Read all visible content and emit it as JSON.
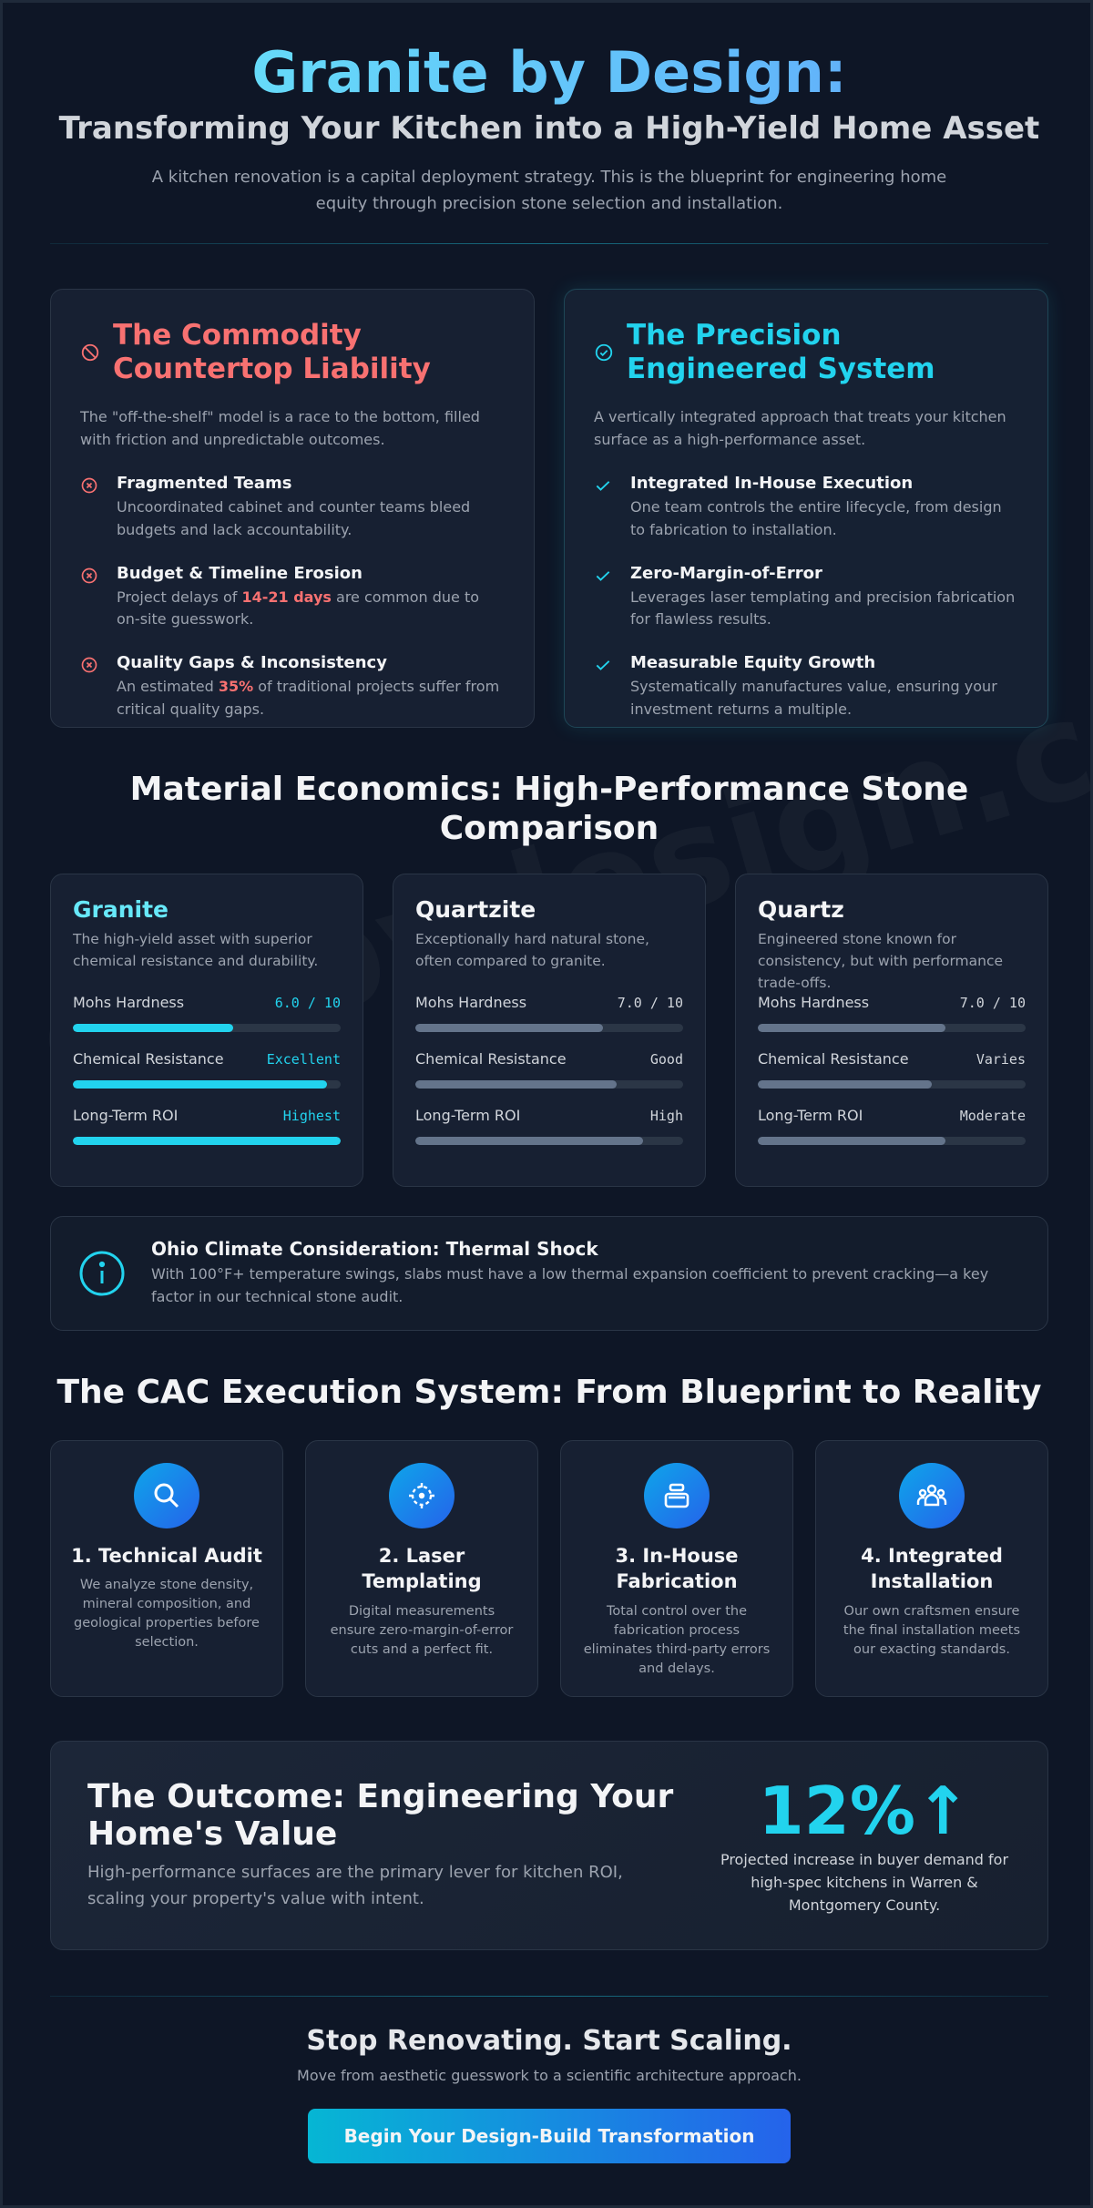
{
  "hero": {
    "title": "Granite by Design:",
    "subtitle": "Transforming Your Kitchen into a High-Yield Home Asset",
    "intro": "A kitchen renovation is a capital deployment strategy. This is the blueprint for engineering home equity through precision stone selection and installation."
  },
  "watermark": "cacbydesign.com",
  "commodity": {
    "title": "The Commodity Countertop Liability",
    "icon": "ban-icon",
    "description": "The \"off-the-shelf\" model is a race to the bottom, filled with friction and unpredictable outcomes.",
    "color": "#f87171",
    "items": [
      {
        "title": "Fragmented Teams",
        "text": "Uncoordinated cabinet and counter teams bleed budgets and lack accountability."
      },
      {
        "title": "Budget & Timeline Erosion",
        "text_before": "Project delays of ",
        "highlight": "14-21 days",
        "text_after": " are common due to on-site guesswork."
      },
      {
        "title": "Quality Gaps & Inconsistency",
        "text_before": "An estimated ",
        "highlight": "35%",
        "text_after": " of traditional projects suffer from critical quality gaps."
      }
    ]
  },
  "precision": {
    "title": "The Precision Engineered System",
    "icon": "check-circle-icon",
    "description": "A vertically integrated approach that treats your kitchen surface as a high-performance asset.",
    "color": "#22d3ee",
    "items": [
      {
        "title": "Integrated In-House Execution",
        "text": "One team controls the entire lifecycle, from design to fabrication to installation."
      },
      {
        "title": "Zero-Margin-of-Error",
        "text": "Leverages laser templating and precision fabrication for flawless results."
      },
      {
        "title": "Measurable Equity Growth",
        "text": "Systematically manufactures value, ensuring your investment returns a multiple."
      }
    ]
  },
  "materials": {
    "title": "Material Economics: High-Performance Stone Comparison",
    "stones": [
      {
        "name": "Granite",
        "description": "The high-yield asset with superior chemical resistance and durability.",
        "metrics": [
          {
            "label": "Mohs Hardness",
            "value": "6.0 / 10",
            "level": 0.6
          },
          {
            "label": "Chemical Resistance",
            "value": "Excellent",
            "level": 0.95
          },
          {
            "label": "Long-Term ROI",
            "value": "Highest",
            "level": 1.0
          }
        ]
      },
      {
        "name": "Quartzite",
        "description": "Exceptionally hard natural stone, often compared to granite.",
        "metrics": [
          {
            "label": "Mohs Hardness",
            "value": "7.0 / 10",
            "level": 0.7
          },
          {
            "label": "Chemical Resistance",
            "value": "Good",
            "level": 0.75
          },
          {
            "label": "Long-Term ROI",
            "value": "High",
            "level": 0.85
          }
        ]
      },
      {
        "name": "Quartz",
        "description": "Engineered stone known for consistency, but with performance trade-offs.",
        "metrics": [
          {
            "label": "Mohs Hardness",
            "value": "7.0 / 10",
            "level": 0.7
          },
          {
            "label": "Chemical Resistance",
            "value": "Varies",
            "level": 0.65
          },
          {
            "label": "Long-Term ROI",
            "value": "Moderate",
            "level": 0.7
          }
        ]
      }
    ]
  },
  "climate": {
    "icon": "info-icon",
    "title": "Ohio Climate Consideration: Thermal Shock",
    "text": "With 100°F+ temperature swings, slabs must have a low thermal expansion coefficient to prevent cracking—a key factor in our technical stone audit."
  },
  "execution": {
    "title": "The CAC Execution System: From Blueprint to Reality",
    "steps": [
      {
        "icon": "search-icon",
        "title": "1. Technical Audit",
        "text": "We analyze stone density, mineral composition, and geological properties before selection."
      },
      {
        "icon": "laser-target-icon",
        "title": "2. Laser Templating",
        "text": "Digital measurements ensure zero-margin-of-error cuts and a perfect fit."
      },
      {
        "icon": "fabrication-icon",
        "title": "3. In-House Fabrication",
        "text": "Total control over the fabrication process eliminates third-party errors and delays."
      },
      {
        "icon": "team-icon",
        "title": "4. Integrated Installation",
        "text": "Our own craftsmen ensure the final installation meets our exacting standards."
      }
    ]
  },
  "outcome": {
    "title": "The Outcome: Engineering Your Home's Value",
    "text": "High-performance surfaces are the primary lever for kitchen ROI, scaling your property's value with intent.",
    "stat": "12%↑",
    "stat_caption": "Projected increase in buyer demand for high-spec kitchens in Warren & Montgomery County."
  },
  "cta": {
    "title": "Stop Renovating. Start Scaling.",
    "subtitle": "Move from aesthetic guesswork to a scientific architecture approach.",
    "button": "Begin Your Design-Build Transformation"
  }
}
